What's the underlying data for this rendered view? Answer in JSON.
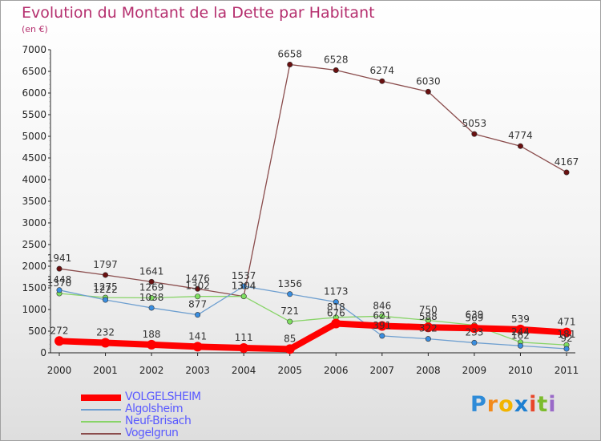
{
  "header": {
    "title": "Evolution du Montant de la Dette par Habitant",
    "subtitle": "(en €)"
  },
  "logo": {
    "text": "Proxiti",
    "letters": [
      {
        "ch": "P",
        "color": "#2e8bd8"
      },
      {
        "ch": "r",
        "color": "#f28a1c"
      },
      {
        "ch": "o",
        "color": "#f2b400"
      },
      {
        "ch": "x",
        "color": "#1d7fd1"
      },
      {
        "ch": "i",
        "color": "#e8462a"
      },
      {
        "ch": "t",
        "color": "#7cbc2c"
      },
      {
        "ch": "i",
        "color": "#9a6ac8"
      }
    ]
  },
  "chart_data": {
    "type": "line",
    "title": "Evolution du Montant de la Dette par Habitant",
    "subtitle": "(en €)",
    "x": [
      "2000",
      "2001",
      "2002",
      "2003",
      "2004",
      "2005",
      "2006",
      "2007",
      "2008",
      "2009",
      "2010",
      "2011"
    ],
    "ylim": [
      0,
      7000
    ],
    "yticks": [
      0,
      500,
      1000,
      1500,
      2000,
      2500,
      3000,
      3500,
      4000,
      4500,
      5000,
      5500,
      6000,
      6500,
      7000
    ],
    "grid": false,
    "legend_position": "bottom-left",
    "series": [
      {
        "name": "VOLGELSHEIM",
        "color": "#ff0000",
        "marker_color": "#ff0000",
        "width": 8,
        "marker": 6,
        "values": [
          272,
          232,
          188,
          141,
          111,
          85,
          676,
          621,
          588,
          569,
          539,
          471
        ],
        "labels": [
          "272",
          "232",
          "188",
          "141",
          "111",
          "85",
          "676",
          "621",
          "588",
          "569",
          "539",
          "471"
        ]
      },
      {
        "name": "Algolsheim",
        "color": "#6e9fd0",
        "marker_color": "#3a8ee0",
        "width": 1.3,
        "marker": 3.2,
        "values": [
          1448,
          1222,
          1038,
          877,
          1537,
          1356,
          1173,
          391,
          322,
          233,
          162,
          92
        ],
        "labels": [
          "1448",
          "1222",
          "1038",
          "877",
          "1537",
          "1356",
          "1173",
          "391",
          "322",
          "233",
          "162",
          "92"
        ]
      },
      {
        "name": "Neuf-Brisach",
        "color": "#88d468",
        "marker_color": "#7fe060",
        "width": 1.3,
        "marker": 3.2,
        "values": [
          1370,
          1275,
          1269,
          1302,
          1304,
          721,
          818,
          846,
          750,
          639,
          244,
          181
        ],
        "labels": [
          "1370",
          "1275",
          "1269",
          "1302",
          "1304",
          "721",
          "818",
          "846",
          "750",
          "639",
          "244",
          "181"
        ]
      },
      {
        "name": "Vogelgrun",
        "color": "#8a4c4c",
        "marker_color": "#6a1010",
        "width": 1.3,
        "marker": 3.2,
        "values": [
          1941,
          1797,
          1641,
          1476,
          1304,
          6658,
          6528,
          6274,
          6030,
          5053,
          4774,
          4167
        ],
        "labels": [
          "1941",
          "1797",
          "1641",
          "1476",
          "1304",
          "6658",
          "6528",
          "6274",
          "6030",
          "5053",
          "4774",
          "4167"
        ]
      }
    ]
  }
}
